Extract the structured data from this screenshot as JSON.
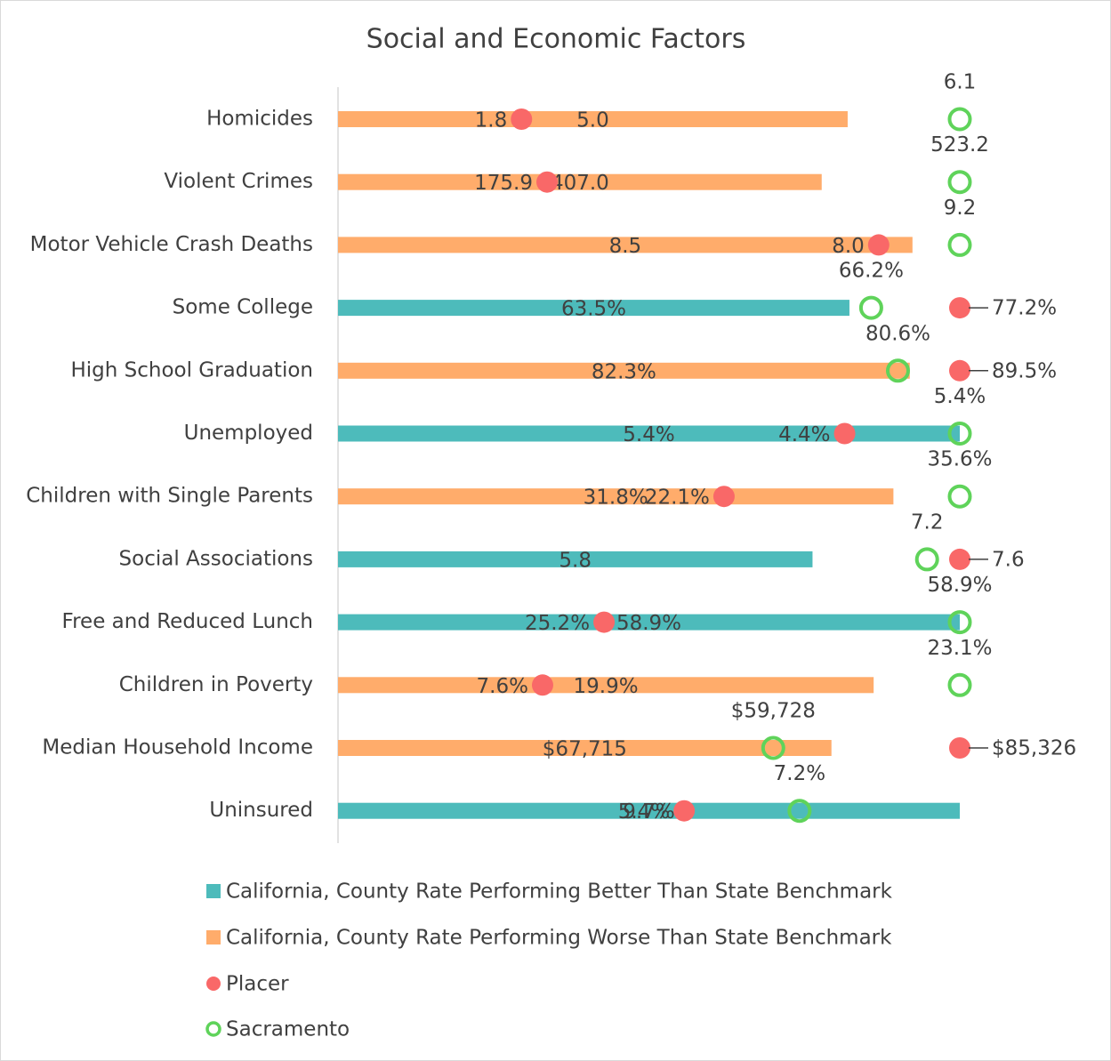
{
  "chart_data": {
    "type": "bar",
    "title": "Social and Economic Factors",
    "categories": [
      "Homicides",
      "Violent Crimes",
      "Motor Vehicle Crash Deaths",
      "Some College",
      "High School Graduation",
      "Unemployed",
      "Children with Single Parents",
      "Social Associations",
      "Free and Reduced Lunch",
      "Children in Poverty",
      "Median Household Income",
      "Uninsured"
    ],
    "series": [
      {
        "name": "California, County Rate Performing Better Than State Benchmark",
        "color": "#4dbbbb",
        "values": [
          null,
          null,
          null,
          63.5,
          null,
          5.4,
          null,
          5.8,
          58.9,
          null,
          null,
          9.7
        ],
        "value_labels": [
          null,
          null,
          null,
          "63.5%",
          null,
          "5.4%",
          null,
          "5.8",
          "58.9%",
          null,
          null,
          "9.7%"
        ]
      },
      {
        "name": "California, County Rate Performing Worse Than State Benchmark",
        "color": "#ffac6b",
        "values": [
          5.0,
          407.0,
          8.5,
          null,
          82.3,
          null,
          31.8,
          null,
          null,
          19.9,
          67715,
          null
        ],
        "value_labels": [
          "5.0",
          "407.0",
          "8.5",
          null,
          "82.3%",
          null,
          "31.8%",
          null,
          null,
          "19.9%",
          "$67,715",
          null
        ]
      },
      {
        "name": "Placer",
        "color": "#f96868",
        "values": [
          1.8,
          175.9,
          8.0,
          77.2,
          89.5,
          4.4,
          22.1,
          7.6,
          25.2,
          7.6,
          85326,
          5.4
        ],
        "value_labels": [
          "1.8",
          "175.9",
          "8.0",
          "77.2%",
          "89.5%",
          "4.4%",
          "22.1%",
          "7.6",
          "25.2%",
          "7.6%",
          "$85,326",
          "5.4%"
        ]
      },
      {
        "name": "Sacramento",
        "color": "#5fd35a",
        "values": [
          6.1,
          523.2,
          9.2,
          66.2,
          80.6,
          5.4,
          35.6,
          7.2,
          58.9,
          23.1,
          59728,
          7.2
        ],
        "value_labels": [
          "6.1",
          "523.2",
          "9.2",
          "66.2%",
          "80.6%",
          "5.4%",
          "35.6%",
          "7.2",
          "58.9%",
          "23.1%",
          "$59,728",
          "7.2%"
        ]
      }
    ]
  }
}
